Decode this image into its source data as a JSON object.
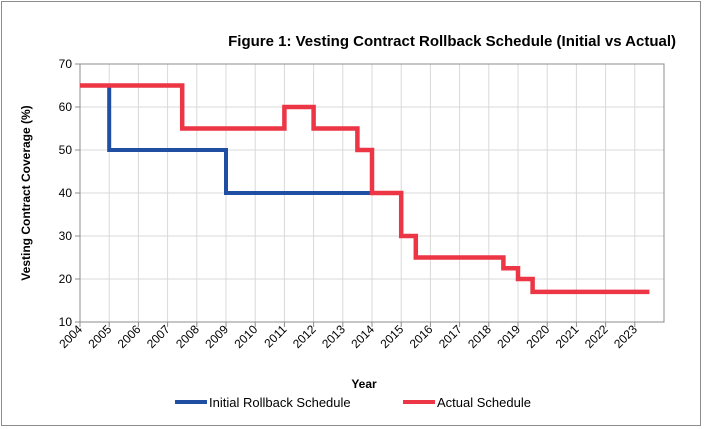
{
  "chart_data": {
    "type": "line",
    "title": "Figure 1: Vesting Contract Rollback Schedule (Initial vs Actual)",
    "xlabel": "Year",
    "ylabel": "Vesting Contract Coverage (%)",
    "xlim": [
      2004,
      2024
    ],
    "ylim": [
      10,
      70
    ],
    "x_ticks": [
      "2004",
      "2005",
      "2006",
      "2007",
      "2008",
      "2009",
      "2010",
      "2011",
      "2012",
      "2013",
      "2014",
      "2015",
      "2016",
      "2017",
      "2018",
      "2019",
      "2020",
      "2021",
      "2022",
      "2023"
    ],
    "y_ticks": [
      10,
      20,
      30,
      40,
      50,
      60,
      70
    ],
    "grid": true,
    "legend": "bottom",
    "series": [
      {
        "name": "Initial Rollback Schedule",
        "color": "#1f4ea3",
        "step": true,
        "points": [
          [
            2004,
            65
          ],
          [
            2005,
            65
          ],
          [
            2005,
            50
          ],
          [
            2009,
            50
          ],
          [
            2009,
            40
          ],
          [
            2014,
            40
          ]
        ]
      },
      {
        "name": "Actual Schedule",
        "color": "#ec3545",
        "step": true,
        "points": [
          [
            2004,
            65
          ],
          [
            2007.5,
            65
          ],
          [
            2007.5,
            55
          ],
          [
            2011,
            55
          ],
          [
            2011,
            60
          ],
          [
            2012,
            60
          ],
          [
            2012,
            55
          ],
          [
            2013.5,
            55
          ],
          [
            2013.5,
            50
          ],
          [
            2014,
            50
          ],
          [
            2014,
            40
          ],
          [
            2015,
            40
          ],
          [
            2015,
            30
          ],
          [
            2015.5,
            30
          ],
          [
            2015.5,
            25
          ],
          [
            2018.5,
            25
          ],
          [
            2018.5,
            22.5
          ],
          [
            2019,
            22.5
          ],
          [
            2019,
            20
          ],
          [
            2019.5,
            20
          ],
          [
            2019.5,
            17
          ],
          [
            2023.5,
            17
          ]
        ]
      }
    ]
  }
}
